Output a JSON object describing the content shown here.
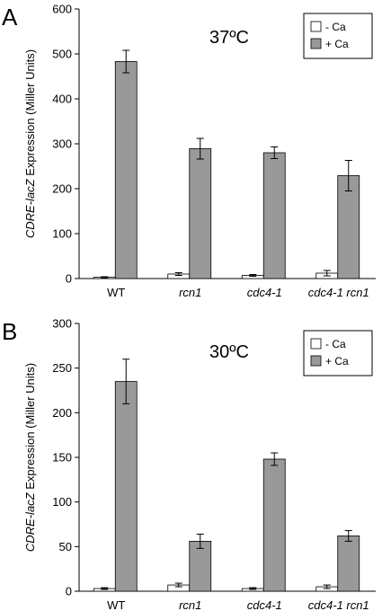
{
  "chart_data": [
    {
      "type": "bar",
      "panel_label": "A",
      "annotation": "37ºC",
      "ylabel_italic": "CDRE-lacZ",
      "ylabel_rest": " Expression (Miller Units)",
      "ylim": [
        0,
        600
      ],
      "yticks": [
        "0",
        "100",
        "200",
        "300",
        "400",
        "500",
        "600"
      ],
      "categories": [
        {
          "label": "WT",
          "italic": false
        },
        {
          "label": "rcn1",
          "italic": true
        },
        {
          "label": "cdc4-1",
          "italic": true
        },
        {
          "label": "cdc4-1 rcn1",
          "italic": true
        }
      ],
      "series": [
        {
          "name": "- Ca",
          "color": "#ffffff",
          "values": [
            3,
            10,
            7,
            12
          ],
          "errors": [
            1,
            3,
            2,
            6
          ]
        },
        {
          "name": "+ Ca",
          "color": "#999999",
          "values": [
            483,
            289,
            280,
            229
          ],
          "errors": [
            25,
            23,
            13,
            34
          ]
        }
      ],
      "legend_position": "top-right"
    },
    {
      "type": "bar",
      "panel_label": "B",
      "annotation": "30ºC",
      "ylabel_italic": "CDRE-lacZ",
      "ylabel_rest": " Expression (Miller Units)",
      "ylim": [
        0,
        300
      ],
      "yticks": [
        "0",
        "50",
        "100",
        "150",
        "200",
        "250",
        "300"
      ],
      "categories": [
        {
          "label": "WT",
          "italic": false
        },
        {
          "label": "rcn1",
          "italic": true
        },
        {
          "label": "cdc4-1",
          "italic": true
        },
        {
          "label": "cdc4-1 rcn1",
          "italic": true
        }
      ],
      "series": [
        {
          "name": "- Ca",
          "color": "#ffffff",
          "values": [
            3,
            7,
            3,
            5
          ],
          "errors": [
            1,
            2,
            1,
            2
          ]
        },
        {
          "name": "+ Ca",
          "color": "#999999",
          "values": [
            235,
            56,
            148,
            62
          ],
          "errors": [
            25,
            8,
            7,
            6
          ]
        }
      ],
      "legend_position": "top-right"
    }
  ]
}
